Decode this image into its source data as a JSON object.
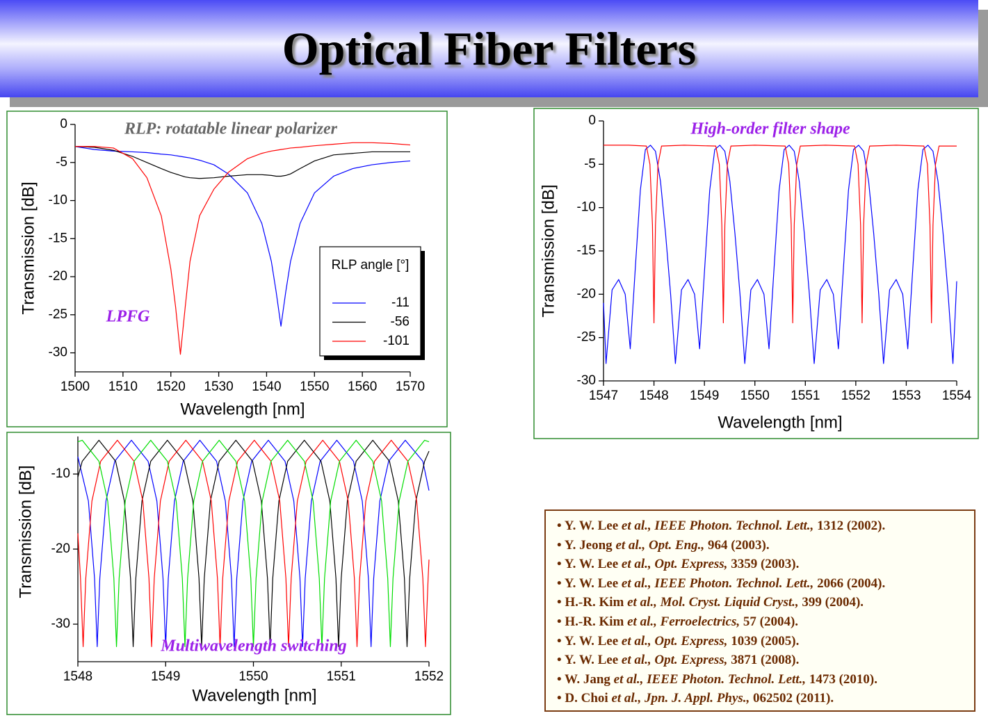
{
  "title": "Optical Fiber Filters",
  "chart_data": [
    {
      "type": "line",
      "axis_label_x": "Wavelength [nm]",
      "axis_label_y": "Transmission [dB]",
      "annotations": [
        "RLP: rotatable linear polarizer",
        "LPFG"
      ],
      "legend_title": "RLP angle [°]",
      "xlim": [
        1500,
        1570
      ],
      "xticks": [
        1500,
        1510,
        1520,
        1530,
        1540,
        1550,
        1560,
        1570
      ],
      "ylim": [
        -32.5,
        0
      ],
      "yticks": [
        0,
        -5,
        -10,
        -15,
        -20,
        -25,
        -30
      ],
      "x": [
        1500,
        1504,
        1508,
        1512,
        1515,
        1518,
        1520,
        1521,
        1522,
        1523,
        1524,
        1526,
        1529,
        1532,
        1536,
        1539,
        1541,
        1542,
        1543,
        1544,
        1545,
        1547,
        1550,
        1554,
        1558,
        1562,
        1566,
        1570
      ],
      "series": [
        {
          "name": "-11",
          "color": "#0000ff",
          "values": [
            -2.9,
            -3.3,
            -3.5,
            -3.6,
            -3.7,
            -3.9,
            -4.0,
            -4.1,
            -4.2,
            -4.3,
            -4.4,
            -4.7,
            -5.3,
            -6.5,
            -9,
            -13,
            -18,
            -22,
            -26.5,
            -22,
            -18,
            -13,
            -9,
            -6.8,
            -5.8,
            -5.3,
            -5.0,
            -4.8
          ]
        },
        {
          "name": "-56",
          "color": "#000000",
          "values": [
            -2.9,
            -3.0,
            -3.4,
            -4.2,
            -5.0,
            -5.8,
            -6.3,
            -6.5,
            -6.7,
            -6.9,
            -7.0,
            -7.1,
            -7.0,
            -6.8,
            -6.6,
            -6.6,
            -6.7,
            -6.8,
            -6.8,
            -6.7,
            -6.5,
            -5.8,
            -4.8,
            -4.0,
            -3.8,
            -3.6,
            -3.6,
            -3.6
          ]
        },
        {
          "name": "-101",
          "color": "#ff0000",
          "values": [
            -2.9,
            -2.9,
            -3.1,
            -4.5,
            -7,
            -12,
            -19,
            -24,
            -30.2,
            -24,
            -18,
            -12,
            -8.5,
            -6.3,
            -4.5,
            -3.8,
            -3.5,
            -3.4,
            -3.3,
            -3.2,
            -3.1,
            -3.0,
            -2.8,
            -2.6,
            -2.4,
            -2.4,
            -2.5,
            -2.7
          ]
        }
      ]
    },
    {
      "type": "line",
      "axis_label_x": "Wavelength [nm]",
      "axis_label_y": "Transmission [dB]",
      "annotations": [
        "High-order filter shape"
      ],
      "xlim": [
        1547,
        1554
      ],
      "xticks": [
        1547,
        1548,
        1549,
        1550,
        1551,
        1552,
        1553,
        1554
      ],
      "ylim": [
        -30,
        0
      ],
      "yticks": [
        0,
        -5,
        -10,
        -15,
        -20,
        -25,
        -30
      ],
      "series": [
        {
          "color": "#0000ff",
          "x": [
            1547.0,
            1547.05,
            1547.17,
            1547.3,
            1547.43,
            1547.53,
            1547.63,
            1547.73,
            1547.83,
            1547.93,
            1548.03,
            1548.13,
            1548.23,
            1548.33,
            1548.425,
            1548.545,
            1548.675,
            1548.805,
            1548.905,
            1549.005,
            1549.105,
            1549.205,
            1549.305,
            1549.405,
            1549.505,
            1549.605,
            1549.705,
            1549.8,
            1549.92,
            1550.05,
            1550.18,
            1550.28,
            1550.38,
            1550.48,
            1550.58,
            1550.68,
            1550.78,
            1550.88,
            1550.98,
            1551.08,
            1551.175,
            1551.295,
            1551.425,
            1551.555,
            1551.655,
            1551.755,
            1551.855,
            1551.955,
            1552.055,
            1552.155,
            1552.255,
            1552.355,
            1552.455,
            1552.55,
            1552.67,
            1552.8,
            1552.93,
            1553.03,
            1553.13,
            1553.23,
            1553.33,
            1553.43,
            1553.53,
            1553.63,
            1553.73,
            1553.83,
            1553.925,
            1554.0
          ],
          "values": [
            -21,
            -28,
            -19.5,
            -18.3,
            -20,
            -26.3,
            -17,
            -8,
            -3.3,
            -2.8,
            -3.5,
            -7,
            -13,
            -20,
            -28,
            -19.5,
            -18.3,
            -20,
            -26.3,
            -17,
            -8,
            -3.3,
            -2.8,
            -3.5,
            -7,
            -13,
            -20,
            -28,
            -19.5,
            -18.3,
            -20,
            -26.3,
            -17,
            -8,
            -3.3,
            -2.8,
            -3.5,
            -7,
            -13,
            -20,
            -28,
            -19.5,
            -18.3,
            -20,
            -26.3,
            -17,
            -8,
            -3.3,
            -2.8,
            -3.5,
            -7,
            -13,
            -20,
            -28,
            -19.5,
            -18.3,
            -20,
            -26.3,
            -17,
            -8,
            -3.3,
            -2.8,
            -3.5,
            -7,
            -13,
            -20,
            -28,
            -18.5
          ]
        },
        {
          "color": "#ff0000",
          "x": [
            1547.0,
            1547.5,
            1547.85,
            1547.92,
            1547.97,
            1548.0,
            1548.03,
            1548.08,
            1548.15,
            1548.6,
            1549.225,
            1549.295,
            1549.345,
            1549.375,
            1549.405,
            1549.455,
            1549.525,
            1550.0,
            1550.6,
            1550.67,
            1550.72,
            1550.75,
            1550.78,
            1550.83,
            1550.9,
            1551.4,
            1551.975,
            1552.045,
            1552.095,
            1552.125,
            1552.155,
            1552.205,
            1552.275,
            1552.8,
            1553.35,
            1553.42,
            1553.47,
            1553.5,
            1553.53,
            1553.58,
            1553.65,
            1554.0
          ],
          "values": [
            -2.8,
            -2.8,
            -2.9,
            -5,
            -12,
            -23.3,
            -12,
            -5,
            -2.9,
            -2.8,
            -2.9,
            -5,
            -12,
            -23.3,
            -12,
            -5,
            -2.9,
            -2.8,
            -2.9,
            -5,
            -12,
            -23.3,
            -12,
            -5,
            -2.9,
            -2.8,
            -2.9,
            -5,
            -12,
            -23.3,
            -12,
            -5,
            -2.9,
            -2.8,
            -2.9,
            -5,
            -12,
            -23.3,
            -12,
            -5,
            -2.9,
            -2.9
          ]
        }
      ]
    },
    {
      "type": "line",
      "axis_label_x": "Wavelength [nm]",
      "axis_label_y": "Transmission [dB]",
      "annotations": [
        "Multiwavelength switching"
      ],
      "xlim": [
        1548,
        1552
      ],
      "xticks": [
        1548,
        1549,
        1550,
        1551,
        1552
      ],
      "ylim": [
        -35,
        -5
      ],
      "yticks": [
        -10,
        -20,
        -30
      ],
      "series": [
        {
          "color": "#0000ff",
          "x": [
            1548.0,
            1548.12,
            1548.19,
            1548.22,
            1548.25,
            1548.32,
            1548.42,
            1548.61,
            1548.8,
            1548.9,
            1548.97,
            1549.0,
            1549.03,
            1549.1,
            1549.2,
            1549.39,
            1549.58,
            1549.68,
            1549.75,
            1549.78,
            1549.81,
            1549.88,
            1549.98,
            1550.17,
            1550.36,
            1550.46,
            1550.53,
            1550.56,
            1550.59,
            1550.66,
            1550.76,
            1550.95,
            1551.14,
            1551.24,
            1551.31,
            1551.34,
            1551.37,
            1551.44,
            1551.54,
            1551.73,
            1551.93,
            1552.0
          ],
          "values": [
            -7.7,
            -13.6,
            -23.9,
            -33,
            -23.9,
            -13.6,
            -8.3,
            -5.5,
            -8.3,
            -13.6,
            -23.9,
            -33,
            -23.9,
            -13.6,
            -8.3,
            -5.5,
            -8.3,
            -13.6,
            -23.9,
            -33,
            -23.9,
            -13.6,
            -8.3,
            -5.5,
            -8.3,
            -13.6,
            -23.9,
            -33,
            -23.9,
            -13.6,
            -8.3,
            -5.5,
            -8.3,
            -13.6,
            -23.9,
            -33,
            -23.9,
            -13.6,
            -8.3,
            -5.5,
            -8.3,
            -12.2
          ]
        },
        {
          "color": "#000000",
          "x": [
            1548.0,
            1548.05,
            1548.24,
            1548.43,
            1548.53,
            1548.6,
            1548.63,
            1548.66,
            1548.73,
            1548.83,
            1549.02,
            1549.21,
            1549.31,
            1549.38,
            1549.41,
            1549.44,
            1549.51,
            1549.61,
            1549.8,
            1549.99,
            1550.09,
            1550.16,
            1550.19,
            1550.22,
            1550.29,
            1550.39,
            1550.58,
            1550.77,
            1550.87,
            1550.94,
            1550.97,
            1551.0,
            1551.07,
            1551.17,
            1551.36,
            1551.55,
            1551.65,
            1551.72,
            1551.75,
            1551.78,
            1551.85,
            1551.95,
            1552.0
          ],
          "values": [
            -10.4,
            -8.3,
            -5.5,
            -8.3,
            -13.6,
            -23.9,
            -33,
            -23.9,
            -13.6,
            -8.3,
            -5.5,
            -8.3,
            -13.6,
            -23.9,
            -33,
            -23.9,
            -13.6,
            -8.3,
            -5.5,
            -8.3,
            -13.6,
            -23.9,
            -33,
            -23.9,
            -13.6,
            -8.3,
            -5.5,
            -8.3,
            -13.6,
            -23.9,
            -33,
            -23.9,
            -13.6,
            -8.3,
            -5.5,
            -8.3,
            -13.6,
            -23.9,
            -33,
            -23.9,
            -13.6,
            -8.3,
            -6.95
          ]
        },
        {
          "color": "#ff0000",
          "x": [
            1548.0,
            1548.03,
            1548.06,
            1548.09,
            1548.16,
            1548.26,
            1548.45,
            1548.64,
            1548.74,
            1548.81,
            1548.84,
            1548.87,
            1548.94,
            1549.04,
            1549.23,
            1549.42,
            1549.52,
            1549.59,
            1549.62,
            1549.65,
            1549.72,
            1549.82,
            1550.01,
            1550.2,
            1550.3,
            1550.37,
            1550.4,
            1550.43,
            1550.5,
            1550.6,
            1550.79,
            1550.98,
            1551.08,
            1551.15,
            1551.18,
            1551.21,
            1551.28,
            1551.38,
            1551.57,
            1551.76,
            1551.86,
            1551.93,
            1551.96,
            1551.99,
            1552.0
          ],
          "values": [
            -17.9,
            -23.9,
            -33,
            -23.9,
            -13.6,
            -8.3,
            -5.5,
            -8.3,
            -13.6,
            -23.9,
            -33,
            -23.9,
            -13.6,
            -8.3,
            -5.5,
            -8.3,
            -13.6,
            -23.9,
            -33,
            -23.9,
            -13.6,
            -8.3,
            -5.5,
            -8.3,
            -13.6,
            -23.9,
            -33,
            -23.9,
            -13.6,
            -8.3,
            -5.5,
            -8.3,
            -13.6,
            -23.9,
            -33,
            -23.9,
            -13.6,
            -8.3,
            -5.5,
            -8.3,
            -13.6,
            -23.9,
            -33,
            -23.9,
            -21.4
          ]
        },
        {
          "color": "#00dd00",
          "x": [
            1548.0,
            1548.05,
            1548.24,
            1548.34,
            1548.41,
            1548.44,
            1548.47,
            1548.54,
            1548.64,
            1548.83,
            1549.02,
            1549.12,
            1549.19,
            1549.22,
            1549.25,
            1549.32,
            1549.42,
            1549.61,
            1549.8,
            1549.9,
            1549.97,
            1550.0,
            1550.03,
            1550.1,
            1550.2,
            1550.39,
            1550.58,
            1550.68,
            1550.75,
            1550.78,
            1550.81,
            1550.88,
            1550.98,
            1551.17,
            1551.36,
            1551.46,
            1551.53,
            1551.56,
            1551.59,
            1551.66,
            1551.76,
            1551.95,
            1552.0
          ],
          "values": [
            -5.7,
            -5.5,
            -8.3,
            -13.6,
            -23.9,
            -33,
            -23.9,
            -13.6,
            -8.3,
            -5.5,
            -8.3,
            -13.6,
            -23.9,
            -33,
            -23.9,
            -13.6,
            -8.3,
            -5.5,
            -8.3,
            -13.6,
            -23.9,
            -33,
            -23.9,
            -13.6,
            -8.3,
            -5.5,
            -8.3,
            -13.6,
            -23.9,
            -33,
            -23.9,
            -13.6,
            -8.3,
            -5.5,
            -8.3,
            -13.6,
            -23.9,
            -33,
            -23.9,
            -13.6,
            -8.3,
            -5.5,
            -5.7
          ]
        }
      ]
    }
  ],
  "references": [
    {
      "author": "• Y. W. Lee",
      "etal": "et al.,",
      "journal": "IEEE Photon. Technol. Lett.,",
      "citation": "1312 (2002)."
    },
    {
      "author": "• Y. Jeong",
      "etal": "et al.,",
      "journal": "Opt. Eng.,",
      "citation": "964 (2003)."
    },
    {
      "author": "• Y. W. Lee",
      "etal": "et al.,",
      "journal": "Opt. Express,",
      "citation": "3359 (2003)."
    },
    {
      "author": "• Y. W. Lee",
      "etal": "et al.,",
      "journal": "IEEE Photon. Technol. Lett.,",
      "citation": "2066 (2004)."
    },
    {
      "author": "• H.-R. Kim",
      "etal": "et al.,",
      "journal": "Mol. Cryst. Liquid Cryst.,",
      "citation": "399 (2004)."
    },
    {
      "author": "• H.-R. Kim",
      "etal": "et al.,",
      "journal": "Ferroelectrics,",
      "citation": "57 (2004)."
    },
    {
      "author": "• Y. W. Lee",
      "etal": "et al.,",
      "journal": "Opt. Express,",
      "citation": "1039 (2005)."
    },
    {
      "author": "• Y. W. Lee",
      "etal": "et al.,",
      "journal": "Opt. Express,",
      "citation": "3871 (2008)."
    },
    {
      "author": "• W. Jang",
      "etal": "et al.,",
      "journal": "IEEE Photon. Technol. Lett.,",
      "citation": "1473 (2010)."
    },
    {
      "author": "• D. Choi",
      "etal": "et al.,",
      "journal": "Jpn. J. Appl. Phys.,",
      "citation": "062502 (2011)."
    }
  ]
}
